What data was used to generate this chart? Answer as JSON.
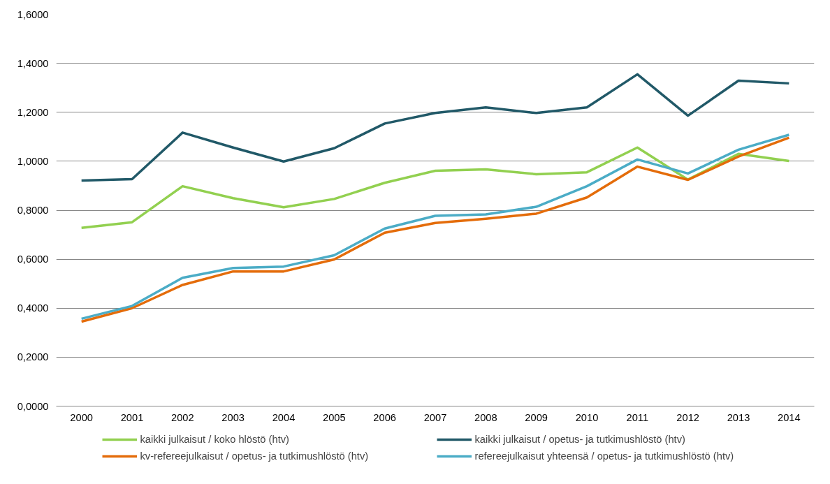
{
  "chart_data": {
    "type": "line",
    "categories": [
      "2000",
      "2001",
      "2002",
      "2003",
      "2004",
      "2005",
      "2006",
      "2007",
      "2008",
      "2009",
      "2010",
      "2011",
      "2012",
      "2013",
      "2014"
    ],
    "series": [
      {
        "name": "kaikki julkaisut / koko hlöstö (htv)",
        "color": "#92d050",
        "values": [
          0.728,
          0.751,
          0.898,
          0.849,
          0.812,
          0.846,
          0.912,
          0.961,
          0.967,
          0.947,
          0.955,
          1.056,
          0.925,
          1.03,
          1.001
        ]
      },
      {
        "name": "kaikki julkaisut / opetus- ja tutkimushlöstö (htv)",
        "color": "#215968",
        "values": [
          0.921,
          0.927,
          1.117,
          1.056,
          0.999,
          1.053,
          1.154,
          1.197,
          1.22,
          1.197,
          1.22,
          1.355,
          1.186,
          1.329,
          1.318
        ]
      },
      {
        "name": "kv-refereejulkaisut / opetus- ja tutkimushlöstö (htv)",
        "color": "#e46c0a",
        "values": [
          0.345,
          0.4,
          0.495,
          0.55,
          0.55,
          0.599,
          0.708,
          0.748,
          0.765,
          0.786,
          0.852,
          0.978,
          0.924,
          1.019,
          1.096
        ]
      },
      {
        "name": "refereejulkaisut yhteensä / opetus- ja tutkimushlöstö (htv)",
        "color": "#4bacc6",
        "values": [
          0.357,
          0.409,
          0.524,
          0.564,
          0.57,
          0.616,
          0.725,
          0.777,
          0.783,
          0.814,
          0.898,
          1.007,
          0.95,
          1.047,
          1.108
        ]
      }
    ],
    "ylim": [
      0,
      1.6
    ],
    "yticks": [
      {
        "value": 0,
        "label": "0,0000"
      },
      {
        "value": 0.2,
        "label": "0,2000"
      },
      {
        "value": 0.4,
        "label": "0,4000"
      },
      {
        "value": 0.6,
        "label": "0,6000"
      },
      {
        "value": 0.8,
        "label": "0,8000"
      },
      {
        "value": 1.0,
        "label": "1,0000"
      },
      {
        "value": 1.2,
        "label": "1,2000"
      },
      {
        "value": 1.4,
        "label": "1,4000"
      },
      {
        "value": 1.6,
        "label": "1,6000"
      }
    ],
    "grid": "y",
    "legend": "bottom",
    "marker": "none",
    "line_style": "solid"
  }
}
